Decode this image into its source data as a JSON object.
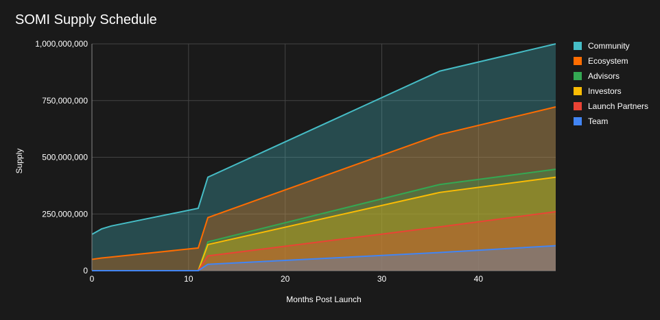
{
  "chart_data": {
    "type": "area",
    "title": "SOMI Supply Schedule",
    "xlabel": "Months Post Launch",
    "ylabel": "Supply",
    "stacked": true,
    "xlim": [
      0,
      48
    ],
    "ylim": [
      0,
      1000000000
    ],
    "x_ticks": [
      "0",
      "10",
      "20",
      "30",
      "40"
    ],
    "y_ticks": [
      "0",
      "250,000,000",
      "500,000,000",
      "750,000,000",
      "1,000,000,000"
    ],
    "grid": true,
    "legend_position": "right",
    "x": [
      0,
      1,
      2,
      11,
      12,
      36,
      48
    ],
    "series": [
      {
        "name": "Team",
        "color": "#4285f4",
        "values": [
          0,
          0,
          0,
          0,
          28000000,
          80000000,
          110000000
        ]
      },
      {
        "name": "Launch Partners",
        "color": "#ea4335",
        "values": [
          0,
          0,
          0,
          0,
          37000000,
          113000000,
          150000000
        ]
      },
      {
        "name": "Investors",
        "color": "#fbbc04",
        "values": [
          0,
          0,
          0,
          0,
          50000000,
          152000000,
          152000000
        ]
      },
      {
        "name": "Advisors",
        "color": "#34a853",
        "values": [
          0,
          0,
          0,
          0,
          12000000,
          35000000,
          35000000
        ]
      },
      {
        "name": "Ecosystem",
        "color": "#ff6d01",
        "values": [
          50000000,
          56000000,
          60000000,
          100000000,
          107000000,
          220000000,
          275000000
        ]
      },
      {
        "name": "Community",
        "color": "#46bdc6",
        "values": [
          110000000,
          128000000,
          137000000,
          175000000,
          178000000,
          280000000,
          278000000
        ]
      }
    ]
  }
}
